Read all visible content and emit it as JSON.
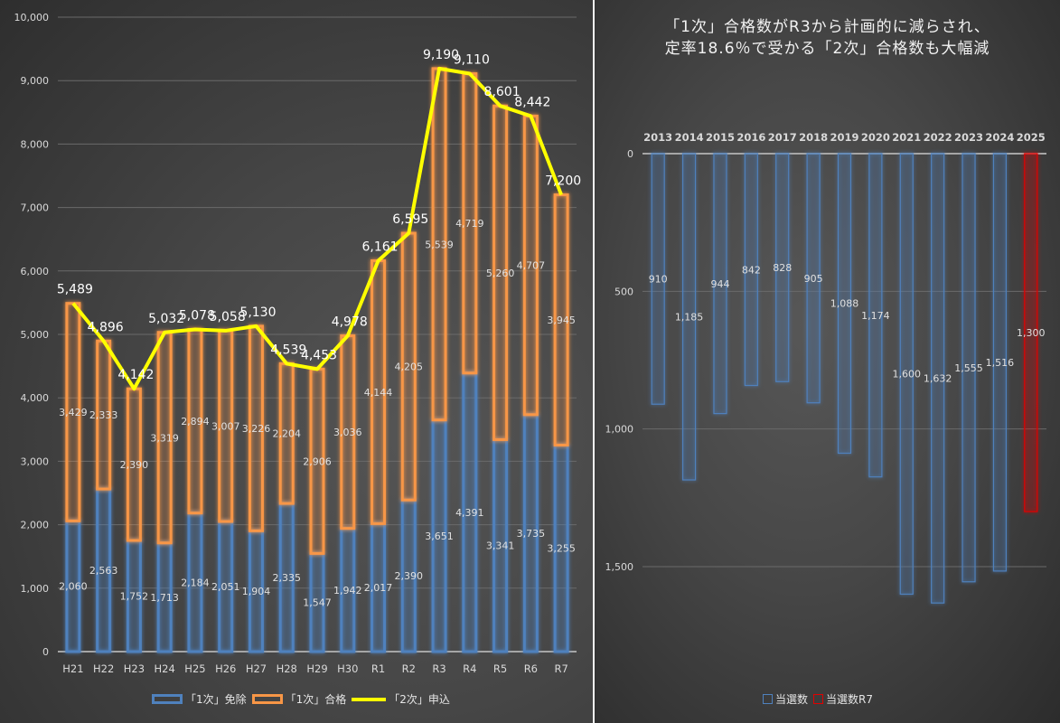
{
  "chart_data": [
    {
      "type": "bar",
      "subtype": "stacked-bar-with-line",
      "title": "",
      "categories": [
        "H21",
        "H22",
        "H23",
        "H24",
        "H25",
        "H26",
        "H27",
        "H28",
        "H29",
        "H30",
        "R1",
        "R2",
        "R3",
        "R4",
        "R5",
        "R6",
        "R7"
      ],
      "series": [
        {
          "name": "「1次」免除",
          "type": "bar",
          "color": "#4f81bd",
          "values": [
            2060,
            2563,
            1752,
            1713,
            2184,
            2051,
            1904,
            2335,
            1547,
            1942,
            2017,
            2390,
            3651,
            4391,
            3341,
            3735,
            3255
          ]
        },
        {
          "name": "「1次」合格",
          "type": "bar",
          "color": "#f79646",
          "values": [
            3429,
            2333,
            2390,
            3319,
            2894,
            3007,
            3226,
            2204,
            2906,
            3036,
            4144,
            4205,
            5539,
            4719,
            5260,
            4707,
            3945
          ]
        },
        {
          "name": "「2次」申込",
          "type": "line",
          "color": "#ffff00",
          "values": [
            5489,
            4896,
            4142,
            5032,
            5078,
            5058,
            5130,
            4539,
            4453,
            4978,
            6161,
            6595,
            9190,
            9110,
            8601,
            8442,
            7200
          ]
        }
      ],
      "ylim": [
        0,
        10000
      ],
      "yticks": [
        "0",
        "1,000",
        "2,000",
        "3,000",
        "4,000",
        "5,000",
        "6,000",
        "7,000",
        "8,000",
        "9,000",
        "10,000"
      ],
      "ytick_values": [
        0,
        1000,
        2000,
        3000,
        4000,
        5000,
        6000,
        7000,
        8000,
        9000,
        10000
      ],
      "grid": true,
      "legend": "bottom",
      "xlabel": "",
      "ylabel": ""
    },
    {
      "type": "bar",
      "subtype": "inverted-axis-bar",
      "title": "「1次」合格数がR3から計画的に減らされ、\n定率18.6％で受かる「2次」合格数も大幅減",
      "title_lines": [
        "「1次」合格数がR3から計画的に減らされ、",
        "定率18.6％で受かる「2次」合格数も大幅減"
      ],
      "categories": [
        "2013",
        "2014",
        "2015",
        "2016",
        "2017",
        "2018",
        "2019",
        "2020",
        "2021",
        "2022",
        "2023",
        "2024",
        "2025"
      ],
      "series": [
        {
          "name": "当選数",
          "color": "#4f81bd",
          "values": [
            910,
            1185,
            944,
            842,
            828,
            905,
            1088,
            1174,
            1600,
            1632,
            1555,
            1516,
            null
          ]
        },
        {
          "name": "当選数R7",
          "color": "#e00000",
          "values": [
            null,
            null,
            null,
            null,
            null,
            null,
            null,
            null,
            null,
            null,
            null,
            null,
            1300
          ]
        }
      ],
      "ylim": [
        0,
        1800
      ],
      "y_reversed": true,
      "yticks": [
        "0",
        "500",
        "1,000",
        "1,500"
      ],
      "ytick_values": [
        0,
        500,
        1000,
        1500
      ],
      "grid": true,
      "legend": "bottom",
      "xaxis_position": "top",
      "xlabel": "",
      "ylabel": ""
    }
  ]
}
